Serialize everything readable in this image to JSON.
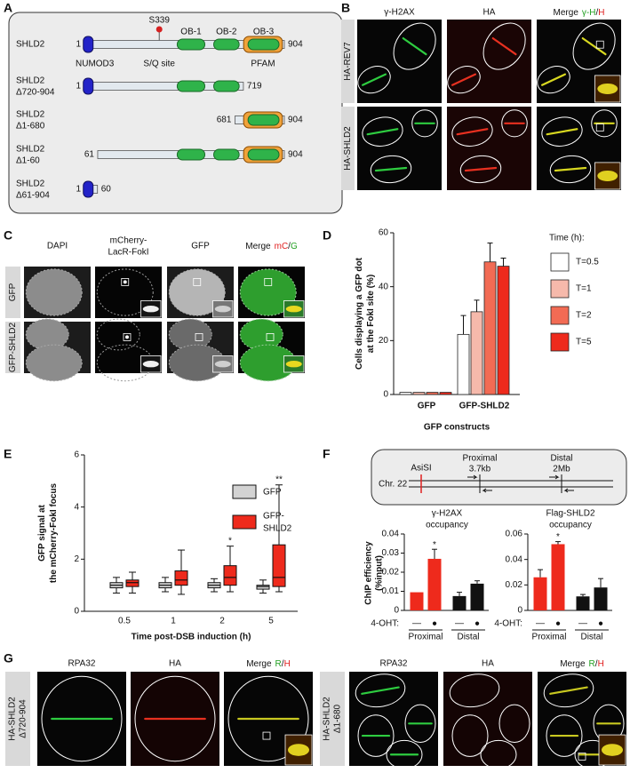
{
  "panel_labels": [
    "A",
    "B",
    "C",
    "D",
    "E",
    "F",
    "G"
  ],
  "panel_a": {
    "proteins": [
      {
        "name": [
          "SHLD2"
        ],
        "start": "1",
        "end": "904"
      },
      {
        "name": [
          "SHLD2",
          "Δ720-904"
        ],
        "start": "1",
        "end": "719"
      },
      {
        "name": [
          "SHLD2",
          "Δ1-680"
        ],
        "start": "681",
        "end": "904"
      },
      {
        "name": [
          "SHLD2",
          "Δ1-60"
        ],
        "start": "61",
        "end": "904"
      },
      {
        "name": [
          "SHLD2",
          "Δ61-904"
        ],
        "start": "1",
        "end": "60"
      }
    ],
    "site": "S339",
    "site_label": "S/Q site",
    "numod": "NUMOD3",
    "ob": [
      "OB-1",
      "OB-2",
      "OB-3"
    ],
    "pfam": "PFAM"
  },
  "panel_b": {
    "headers": [
      "γ-H2AX",
      "HA"
    ],
    "merge": [
      "Merge",
      "γ-H",
      "/",
      "H"
    ],
    "rows": [
      "HA-REV7",
      "HA-SHLD2"
    ]
  },
  "panel_c": {
    "headers": [
      [
        "DAPI"
      ],
      [
        "mCherry-",
        "LacR-FokI"
      ],
      [
        "GFP"
      ]
    ],
    "merge": [
      "Merge",
      "mC",
      "/",
      "G"
    ],
    "rows": [
      "GFP",
      "GFP-SHLD2"
    ]
  },
  "panel_f_diagram": {
    "chromosome": "Chr. 22",
    "site": "AsiSI",
    "proximal": [
      "Proximal",
      "3.7kb"
    ],
    "distal": [
      "Distal",
      "2Mb"
    ]
  },
  "panel_g": {
    "headers": [
      "RPA32",
      "HA"
    ],
    "merge": [
      "Merge",
      "R",
      "/",
      "H"
    ],
    "rows": [
      [
        "HA-SHLD2",
        "Δ720-904"
      ],
      [
        "HA-SHLD2",
        "Δ1-680"
      ]
    ]
  },
  "chart_data": [
    {
      "type": "bar",
      "categories": [
        "GFP",
        "GFP-SHLD2"
      ],
      "series": [
        {
          "name": "T=0.5",
          "color": "#ffffff",
          "values": [
            0.8,
            22.3
          ],
          "errors": [
            null,
            7
          ]
        },
        {
          "name": "T=1",
          "color": "#f6b9ab",
          "values": [
            0.8,
            30.7
          ],
          "errors": [
            null,
            4.3
          ]
        },
        {
          "name": "T=2",
          "color": "#f26b54",
          "values": [
            0.8,
            49.2
          ],
          "errors": [
            null,
            7
          ]
        },
        {
          "name": "T=5",
          "color": "#ee2a1c",
          "values": [
            0.8,
            47.6
          ],
          "errors": [
            null,
            3
          ]
        }
      ],
      "ylabel": [
        "Cells displaying a GFP dot",
        "at the FokI site (%)"
      ],
      "xlabel": "GFP constructs",
      "legend_title": "Time (h):",
      "ylim": [
        0,
        60
      ],
      "yticks": [
        0,
        20,
        40,
        60
      ]
    },
    {
      "type": "box",
      "categories": [
        "0.5",
        "1",
        "2",
        "5"
      ],
      "series": [
        {
          "name": [
            "GFP"
          ],
          "color": "#d3d3d3",
          "whisker_low": [
            0.7,
            0.75,
            0.75,
            0.7
          ],
          "q1": [
            0.9,
            0.9,
            0.9,
            0.85
          ],
          "median": [
            1.0,
            1.0,
            1.0,
            0.95
          ],
          "q3": [
            1.1,
            1.1,
            1.1,
            1.0
          ],
          "whisker_high": [
            1.3,
            1.3,
            1.25,
            1.2
          ]
        },
        {
          "name": [
            "GFP-",
            "SHLD2"
          ],
          "color": "#ee2a1c",
          "whisker_low": [
            0.7,
            0.65,
            0.75,
            0.75
          ],
          "q1": [
            0.95,
            1.0,
            1.0,
            0.95
          ],
          "median": [
            1.1,
            1.2,
            1.3,
            1.3
          ],
          "q3": [
            1.2,
            1.55,
            1.75,
            2.55
          ],
          "whisker_high": [
            1.5,
            2.35,
            2.5,
            4.85
          ]
        }
      ],
      "significance": [
        null,
        null,
        "*",
        "**"
      ],
      "ylabel": [
        "GFP signal at",
        "the mCherry-FokI focus"
      ],
      "xlabel": "Time post-DSB induction (h)",
      "ylim": [
        0,
        6
      ],
      "yticks": [
        0,
        2,
        4,
        6
      ]
    },
    {
      "type": "bar",
      "title": [
        "γ-H2AX",
        "occupancy"
      ],
      "ylabel": [
        "ChIP efficiency",
        "(%input)"
      ],
      "x_label": "4-OHT:",
      "categories": [
        "—",
        "●",
        "—",
        "●"
      ],
      "groups": [
        "Proximal",
        "Distal"
      ],
      "values": [
        0.0095,
        0.027,
        0.0075,
        0.014
      ],
      "errors": [
        null,
        0.005,
        0.002,
        0.0015
      ],
      "colors": [
        "#ee2a1c",
        "#ee2a1c",
        "#111111",
        "#111111"
      ],
      "significance": [
        null,
        "*",
        null,
        null
      ],
      "ylim": [
        0,
        0.04
      ],
      "yticks": [
        0,
        0.01,
        0.02,
        0.03,
        0.04
      ]
    },
    {
      "type": "bar",
      "title": [
        "Flag-SHLD2",
        "occupancy"
      ],
      "x_label": "4-OHT:",
      "categories": [
        "—",
        "●",
        "—",
        "●"
      ],
      "groups": [
        "Proximal",
        "Distal"
      ],
      "values": [
        0.026,
        0.052,
        0.011,
        0.018
      ],
      "errors": [
        0.006,
        0.002,
        0.0015,
        0.007
      ],
      "colors": [
        "#ee2a1c",
        "#ee2a1c",
        "#111111",
        "#111111"
      ],
      "significance": [
        null,
        "*",
        null,
        null
      ],
      "ylim": [
        0,
        0.06
      ],
      "yticks": [
        0,
        0.02,
        0.04,
        0.06
      ]
    }
  ]
}
